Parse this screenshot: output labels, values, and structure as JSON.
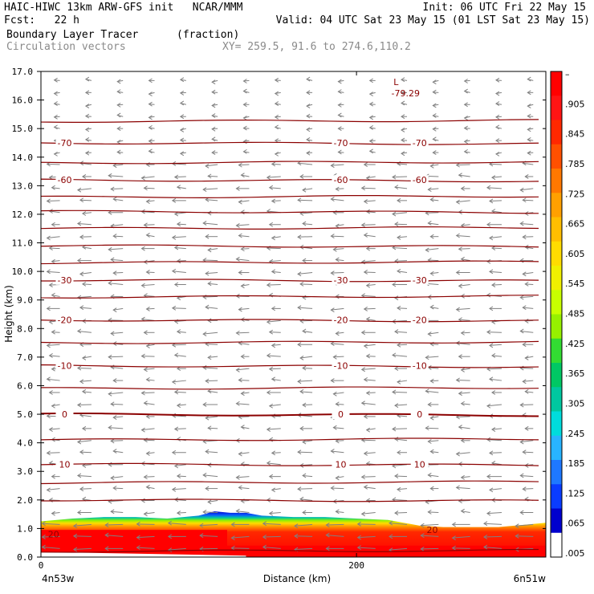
{
  "header": {
    "line1_left": "HAIC-HIWC 13km ARW-GFS init   NCAR/MMM",
    "line1_right": "Init: 06 UTC Fri 22 May 15",
    "line2_left": "Fcst:   22 h",
    "line2_right": "Valid: 04 UTC Sat 23 May 15 (01 LST Sat 23 May 15)",
    "line3_left": "Boundary Layer Tracer",
    "line3_units": "(fraction)",
    "line4_left": "Circulation vectors",
    "line4_xy": "XY= 259.5, 91.6 to 274.6,110.2"
  },
  "colors": {
    "contour": "#8b0000",
    "vector": "#808080",
    "colorbar": [
      "#ffffff",
      "#0000cd",
      "#0a3cff",
      "#1e78ff",
      "#28b4ff",
      "#00dcdc",
      "#00c8a0",
      "#00c864",
      "#32dc32",
      "#96f000",
      "#c8ff00",
      "#f0f000",
      "#ffdc00",
      "#ffbe00",
      "#ffa000",
      "#ff7800",
      "#ff5000",
      "#ff2800",
      "#ff1414",
      "#ff0000"
    ]
  },
  "chart_data": {
    "type": "heatmap",
    "ylabel": "Height (km)",
    "xlabel": "Distance (km)",
    "x_left_label": "4n53w",
    "x_right_label": "6n51w",
    "x_ticks": [
      {
        "value": 0,
        "label": "0"
      },
      {
        "value": 200,
        "label": "200"
      }
    ],
    "xlim": [
      0,
      320
    ],
    "y_ticks": [
      "0.0",
      "1.0",
      "2.0",
      "3.0",
      "4.0",
      "5.0",
      "6.0",
      "7.0",
      "8.0",
      "9.0",
      "10.0",
      "11.0",
      "12.0",
      "13.0",
      "14.0",
      "15.0",
      "16.0",
      "17.0"
    ],
    "ylim": [
      0,
      17
    ],
    "colorbar_labels": [
      "–",
      ".905",
      ".845",
      ".785",
      ".725",
      ".665",
      ".605",
      ".545",
      ".485",
      ".425",
      ".365",
      ".305",
      ".245",
      ".185",
      ".125",
      ".065",
      ".005"
    ],
    "contours": [
      {
        "height": 0.2,
        "label": ""
      },
      {
        "height": 2.0,
        "label": ""
      },
      {
        "height": 2.6,
        "label": ""
      },
      {
        "height": 3.25,
        "label": "10"
      },
      {
        "height": 4.1,
        "label": ""
      },
      {
        "height": 5.0,
        "label": "0"
      },
      {
        "height": 5.9,
        "label": ""
      },
      {
        "height": 6.7,
        "label": "-10"
      },
      {
        "height": 7.5,
        "label": ""
      },
      {
        "height": 8.3,
        "label": "-20"
      },
      {
        "height": 9.1,
        "label": ""
      },
      {
        "height": 9.7,
        "label": "-30"
      },
      {
        "height": 10.3,
        "label": ""
      },
      {
        "height": 10.9,
        "label": ""
      },
      {
        "height": 11.5,
        "label": ""
      },
      {
        "height": 12.1,
        "label": ""
      },
      {
        "height": 12.6,
        "label": ""
      },
      {
        "height": 13.2,
        "label": "-60"
      },
      {
        "height": 13.8,
        "label": ""
      },
      {
        "height": 14.5,
        "label": "-70"
      },
      {
        "height": 15.25,
        "label": ""
      }
    ],
    "surface_contour_label": "20",
    "low": {
      "symbol": "L",
      "value": "-79.29",
      "x": 225,
      "height": 16.3
    },
    "tracer_layer": {
      "x": [
        0,
        20,
        40,
        60,
        80,
        100,
        110,
        120,
        130,
        140,
        160,
        180,
        200,
        220,
        240,
        255,
        270,
        290,
        310,
        320
      ],
      "top": [
        1.25,
        1.35,
        1.4,
        1.4,
        1.35,
        1.45,
        1.6,
        1.55,
        1.55,
        1.45,
        1.4,
        1.4,
        1.35,
        1.3,
        1.1,
        1.05,
        1.05,
        1.05,
        1.15,
        1.2
      ]
    }
  }
}
